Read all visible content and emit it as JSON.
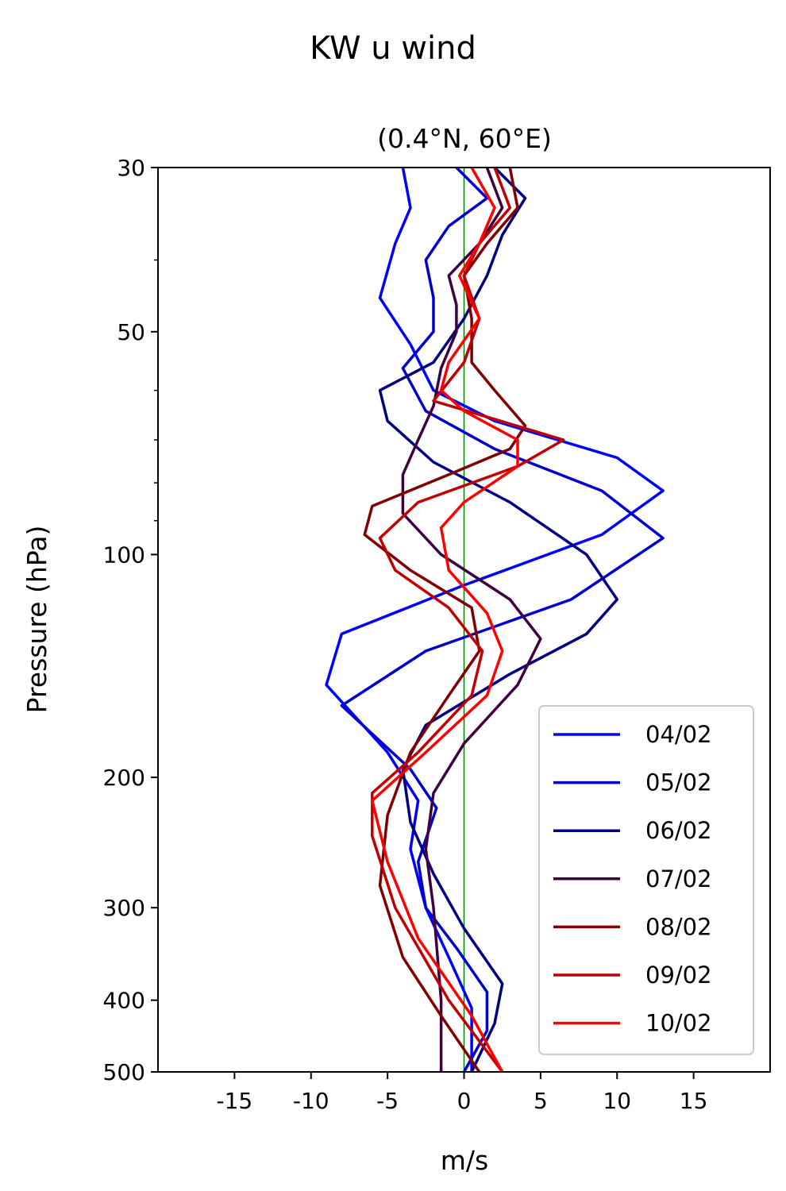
{
  "chart_data": {
    "type": "line",
    "title": "KW u wind",
    "subtitle": "(0.4°N, 60°E)",
    "xlabel": "m/s",
    "ylabel": "Pressure (hPa)",
    "xlim": [
      -20,
      20
    ],
    "ylim": [
      500,
      30
    ],
    "yscale": "log",
    "x_ticks": [
      -15,
      -10,
      -5,
      0,
      5,
      10,
      15
    ],
    "x_tick_labels": [
      "-15",
      "-10",
      "-5",
      "0",
      "5",
      "10",
      "15"
    ],
    "y_ticks": [
      30,
      50,
      100,
      200,
      300,
      400,
      500
    ],
    "y_tick_labels": [
      "30",
      "50",
      "100",
      "200",
      "300",
      "400",
      "500"
    ],
    "y_minor_ticks": [
      40,
      60,
      70,
      80,
      90
    ],
    "zero_line_color": "#008000",
    "legend_position": "lower-right",
    "series": [
      {
        "name": "04/02",
        "color": "#0000ff",
        "p": [
          30,
          34,
          38,
          45,
          52,
          60,
          66,
          74,
          82,
          94,
          110,
          128,
          150,
          185,
          215,
          250,
          300,
          350,
          410,
          460,
          500
        ],
        "u": [
          -4,
          -3.5,
          -4.5,
          -5.5,
          -3.5,
          -2,
          2,
          10,
          13,
          9,
          0,
          -8,
          -9,
          -5,
          -3,
          -3.5,
          -2.5,
          -1,
          0.5,
          0.5,
          0.5
        ]
      },
      {
        "name": "05/02",
        "color": "#0000cc",
        "p": [
          30,
          33,
          36,
          40,
          45,
          50,
          56,
          64,
          72,
          82,
          95,
          115,
          135,
          160,
          195,
          220,
          260,
          300,
          340,
          390,
          440,
          500
        ],
        "u": [
          -0.5,
          1.5,
          -1,
          -2.5,
          -2,
          -2,
          -4,
          -2.5,
          2,
          9,
          13,
          7,
          -2.5,
          -8,
          -3.5,
          -1.8,
          -3,
          -2.5,
          -0.5,
          1.5,
          1.5,
          0
        ]
      },
      {
        "name": "06/02",
        "color": "#000080",
        "p": [
          30,
          33,
          37,
          42,
          48,
          55,
          60,
          66,
          75,
          85,
          100,
          115,
          128,
          145,
          170,
          195,
          230,
          270,
          320,
          380,
          430,
          500
        ],
        "u": [
          2,
          4,
          2.5,
          1.5,
          0,
          -2,
          -5.5,
          -5,
          -2,
          3,
          8,
          10,
          8,
          3,
          -2.5,
          -4,
          -3.5,
          -2,
          0,
          2.5,
          2,
          0.5
        ]
      },
      {
        "name": "07/02",
        "color": "#400040",
        "p": [
          30,
          34,
          38,
          42,
          46,
          50,
          56,
          63,
          70,
          78,
          88,
          100,
          115,
          130,
          150,
          180,
          210,
          250,
          300,
          400,
          500
        ],
        "u": [
          1.5,
          2.5,
          1,
          -1,
          -0.5,
          -0.5,
          -1.5,
          -2,
          -3,
          -4,
          -4,
          -1.5,
          3,
          5,
          3.5,
          0,
          -2,
          -2.5,
          -2,
          -1.5,
          -1.5
        ]
      },
      {
        "name": "08/02",
        "color": "#800000",
        "p": [
          30,
          34,
          38,
          42,
          48,
          55,
          60,
          67,
          72,
          78,
          86,
          94,
          105,
          118,
          135,
          155,
          185,
          225,
          280,
          350,
          420,
          500
        ],
        "u": [
          3,
          3.5,
          1.5,
          0,
          0.5,
          0.5,
          2,
          4,
          3,
          -1,
          -6,
          -6.5,
          -3.5,
          0.5,
          1,
          -1,
          -3.5,
          -5,
          -5.5,
          -4,
          -1.5,
          1
        ]
      },
      {
        "name": "09/02",
        "color": "#c00000",
        "p": [
          30,
          34,
          38,
          42,
          48,
          55,
          62,
          70,
          76,
          85,
          95,
          105,
          118,
          135,
          155,
          185,
          210,
          240,
          300,
          400,
          500
        ],
        "u": [
          2,
          3,
          1,
          0,
          1,
          0,
          -2,
          6.5,
          3.5,
          -3,
          -5.5,
          -4.5,
          -1,
          1.2,
          0.5,
          -3,
          -6,
          -6,
          -4.5,
          -1,
          2.5
        ]
      },
      {
        "name": "10/02",
        "color": "#ff0000",
        "p": [
          30,
          34,
          38,
          42,
          48,
          55,
          60,
          64,
          70,
          76,
          85,
          92,
          105,
          120,
          135,
          155,
          185,
          215,
          260,
          330,
          420,
          500
        ],
        "u": [
          0.5,
          2,
          1,
          -0.3,
          1,
          -1,
          -1.5,
          0,
          3.5,
          3.5,
          0,
          -1.5,
          -1,
          1.5,
          2.5,
          1.5,
          -2.5,
          -6,
          -5,
          -3,
          0.5,
          2.5
        ]
      }
    ]
  }
}
